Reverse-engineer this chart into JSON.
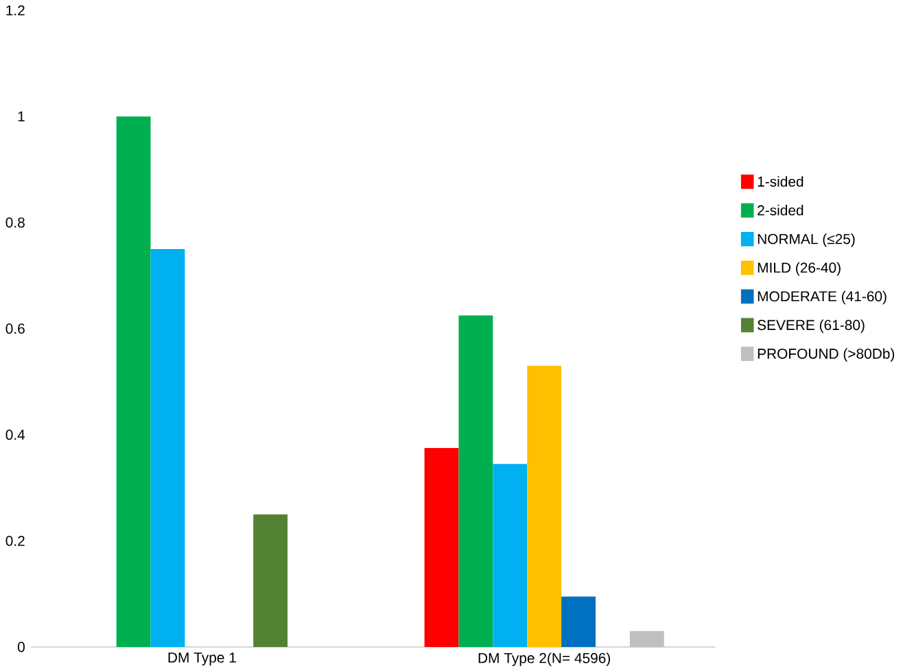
{
  "chart_data": {
    "type": "bar",
    "categories": [
      "DM Type 1",
      "DM Type 2(N= 4596)"
    ],
    "series": [
      {
        "name": "1-sided",
        "color": "#ff0000",
        "values": [
          null,
          0.375
        ]
      },
      {
        "name": "2-sided",
        "color": "#00b050",
        "values": [
          1.0,
          0.625
        ]
      },
      {
        "name": "NORMAL (≤25)",
        "color": "#00b0f0",
        "values": [
          0.75,
          0.345
        ]
      },
      {
        "name": "MILD (26-40)",
        "color": "#ffc000",
        "values": [
          null,
          0.53
        ]
      },
      {
        "name": "MODERATE (41-60)",
        "color": "#0070c0",
        "values": [
          null,
          0.095
        ]
      },
      {
        "name": "SEVERE (61-80)",
        "color": "#548235",
        "values": [
          0.25,
          null
        ]
      },
      {
        "name": "PROFOUND (>80Db)",
        "color": "#bfbfbf",
        "values": [
          null,
          0.03
        ]
      }
    ],
    "ylim": [
      0,
      1.2
    ],
    "yticks": [
      0,
      0.2,
      0.4,
      0.6,
      0.8,
      1,
      1.2
    ],
    "grid": false,
    "legend": "right"
  }
}
